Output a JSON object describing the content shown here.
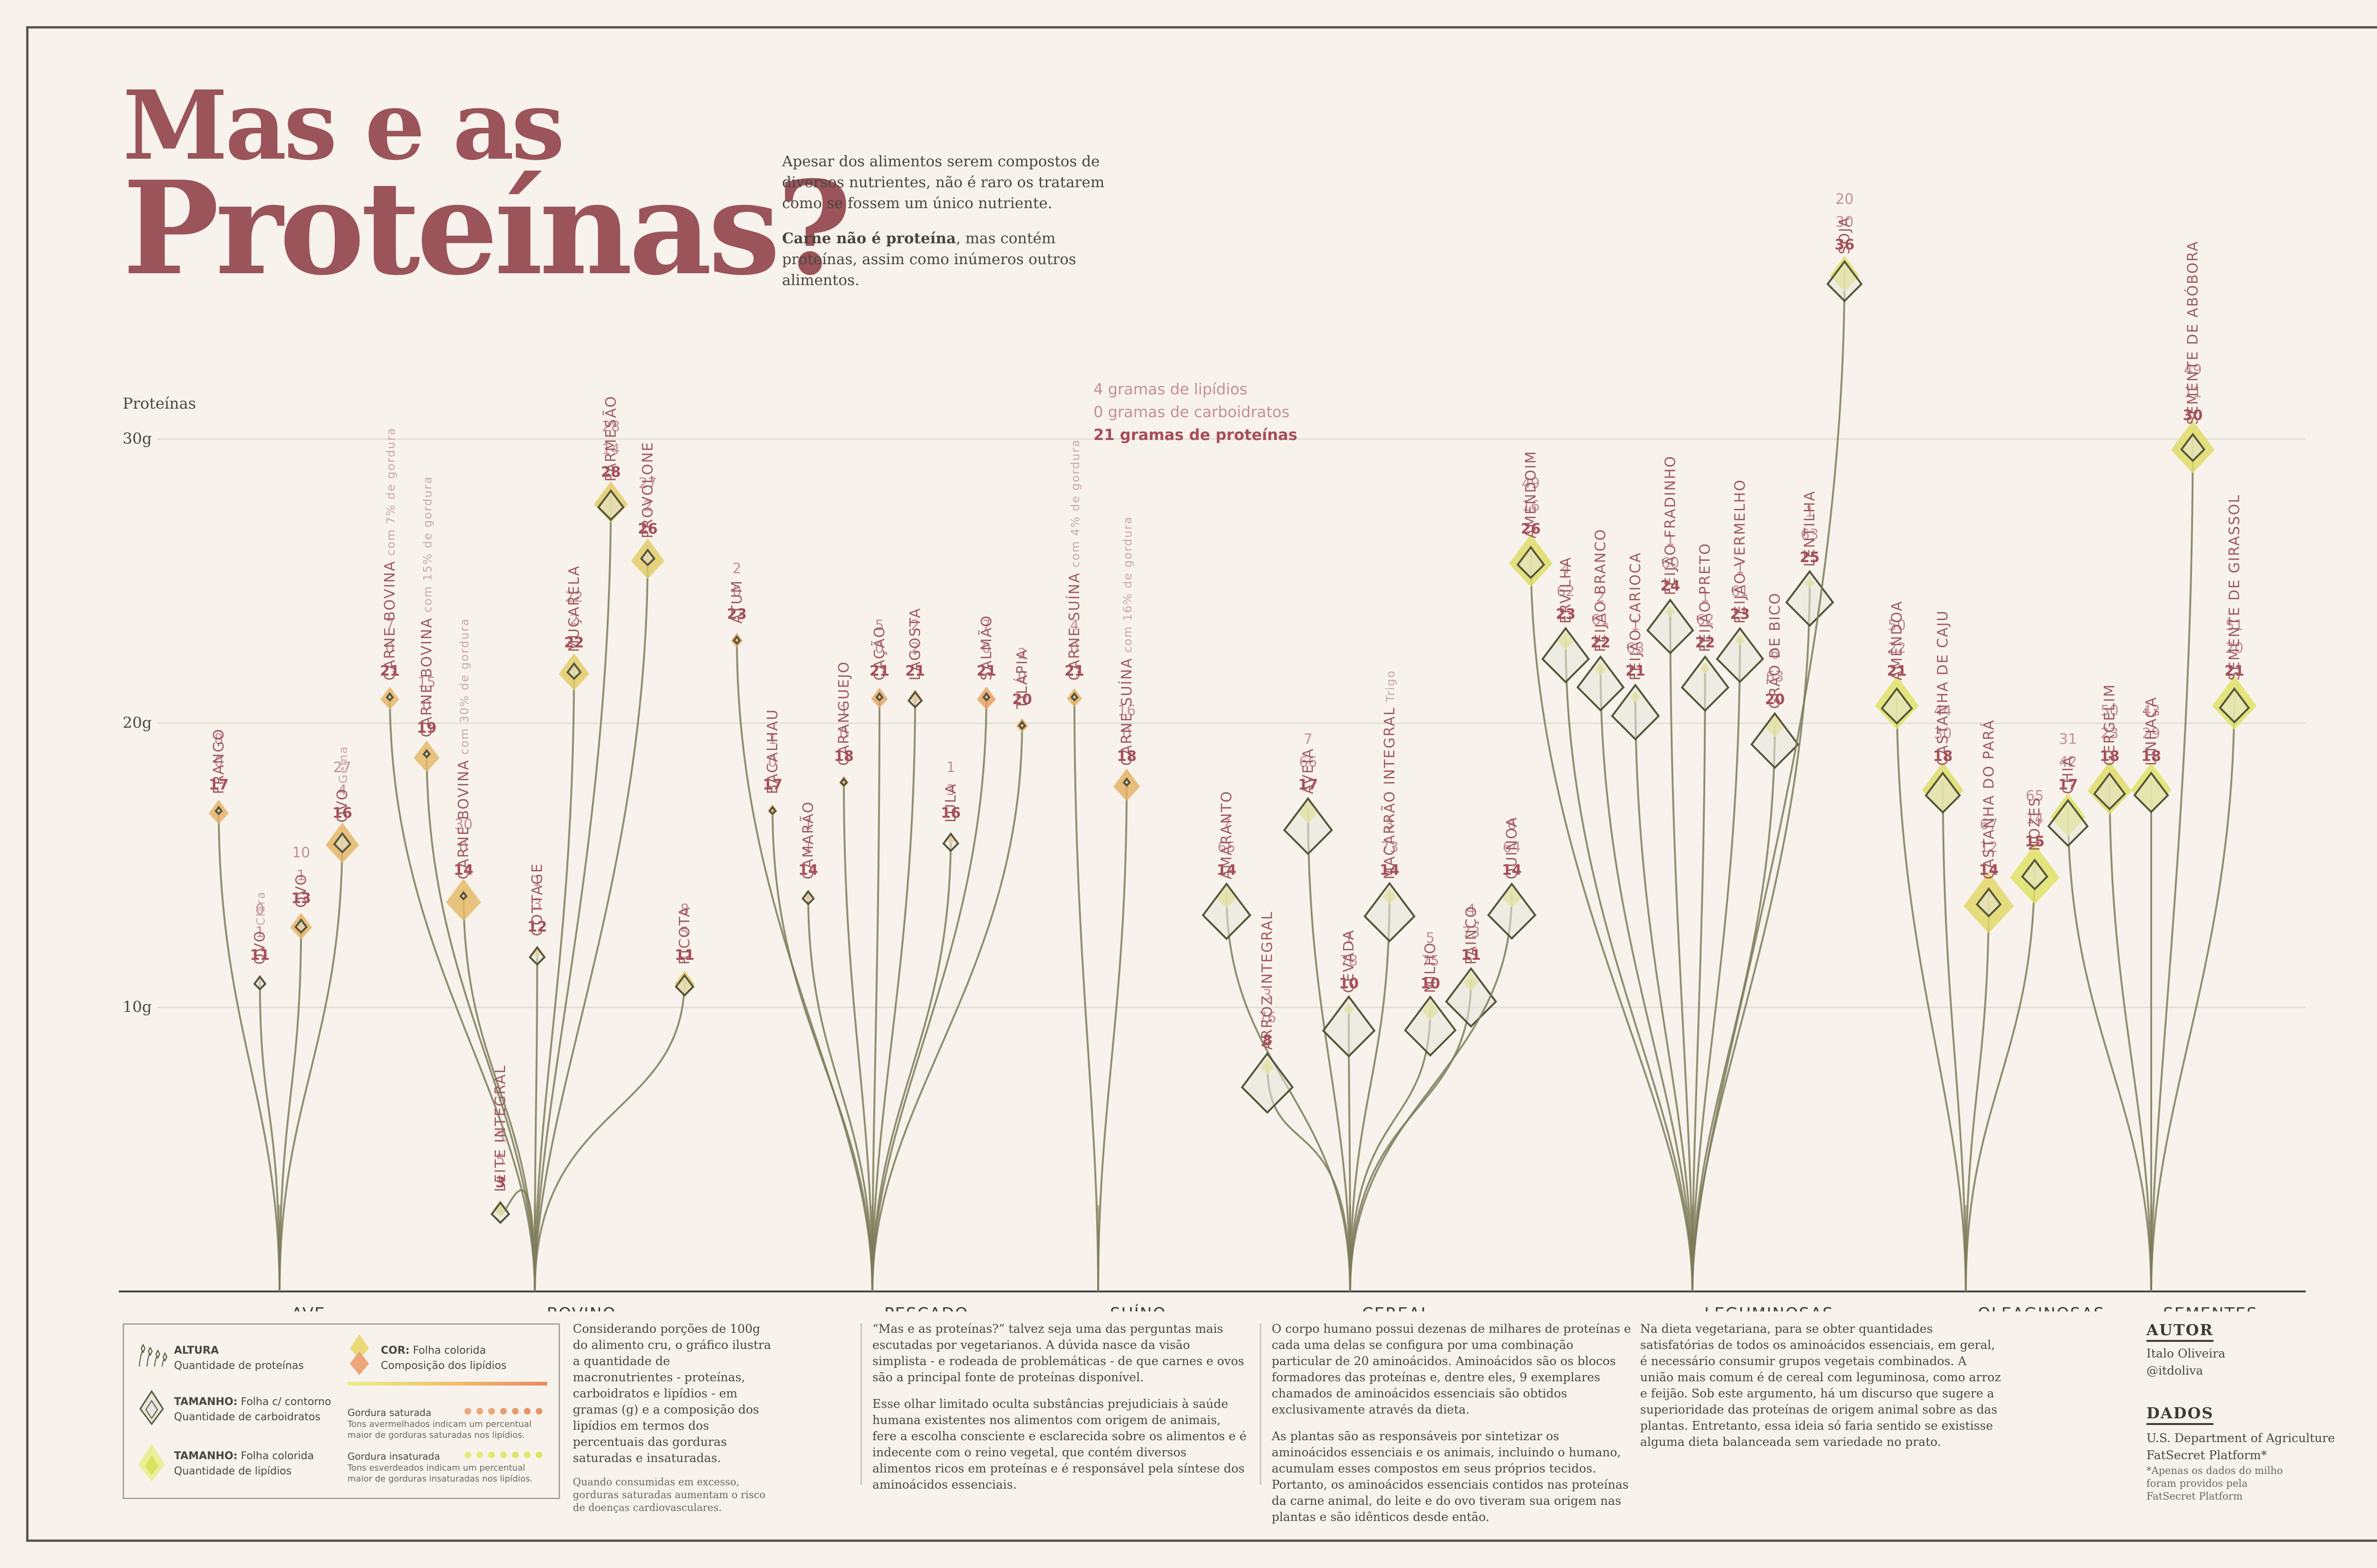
{
  "title": {
    "line1": "Mas e as",
    "line2": "Proteínas?"
  },
  "intro": {
    "p1": "Apesar dos alimentos serem compostos de diversos nutrientes, não é raro os tratarem como se fossem um único nutriente.",
    "p2_bold": "Carne não é proteína",
    "p2_rest": ", mas contém proteínas, assim como inúmeros outros alimentos."
  },
  "colors": {
    "title": "#9b545a",
    "stem": "#7d7d5c",
    "protein": "#a84d5a",
    "fat": "#c58e98",
    "carb": "#c58e98",
    "saturated": "#e8946a",
    "unsaturated": "#e0e86a",
    "leaf_outline": "#55553a",
    "leaf_fill": "#e6e6da"
  },
  "chart_data": {
    "type": "scatter",
    "ylabel": "Proteínas",
    "ylim": [
      0,
      30
    ],
    "yticks": [
      "10g",
      "20g",
      "30g"
    ],
    "key_example": {
      "fat": "4 gramas de lipídios",
      "carb": "0 gramas de carboidratos",
      "protein": "21 gramas de proteínas"
    },
    "categories": [
      "AVE",
      "BOVINO",
      "PESCADO",
      "SUÍNO",
      "CEREAL",
      "LEGUMINOSAS",
      "OLEAGINOSAS",
      "SEMENTES"
    ],
    "foods": [
      {
        "name": "FRANGO",
        "group": "AVE",
        "protein": 17,
        "carb": 0,
        "fat": 8,
        "sat": 0.35
      },
      {
        "name": "OVO",
        "note": "Clara",
        "group": "AVE",
        "protein": 11,
        "carb": 1,
        "fat": 0,
        "sat": 0.5
      },
      {
        "name": "OVO",
        "group": "AVE",
        "protein": 13,
        "carb": 1,
        "fat": 10,
        "sat": 0.35
      },
      {
        "name": "OVO",
        "note": "Gema",
        "group": "AVE",
        "protein": 16,
        "carb": 4,
        "fat": 27,
        "sat": 0.4
      },
      {
        "name": "CARNE BOVINA",
        "note": "com 7% de gordura",
        "group": "BOVINO",
        "protein": 21,
        "carb": 0,
        "fat": 7,
        "sat": 0.4
      },
      {
        "name": "CARNE BOVINA",
        "note": "com 15% de gordura",
        "group": "BOVINO",
        "protein": 19,
        "carb": 0,
        "fat": 15,
        "sat": 0.45
      },
      {
        "name": "CARNE BOVINA",
        "note": "com 30% de gordura",
        "group": "BOVINO",
        "protein": 14,
        "carb": 0,
        "fat": 30,
        "sat": 0.45
      },
      {
        "name": "LEITE INTEGRAL",
        "group": "BOVINO",
        "protein": 3,
        "carb": 5,
        "fat": 3,
        "sat": 0.65
      },
      {
        "name": "COTTAGE",
        "group": "BOVINO",
        "protein": 12,
        "carb": 3,
        "fat": 1,
        "sat": 0.6
      },
      {
        "name": "MUÇARELA",
        "group": "BOVINO",
        "protein": 22,
        "carb": 2,
        "fat": 22,
        "sat": 0.65
      },
      {
        "name": "PARMESÃO",
        "group": "BOVINO",
        "protein": 28,
        "carb": 14,
        "fat": 28,
        "sat": 0.65
      },
      {
        "name": "PROVOLONE",
        "group": "BOVINO",
        "protein": 26,
        "carb": 2,
        "fat": 27,
        "sat": 0.65
      },
      {
        "name": "RICOTA",
        "group": "BOVINO",
        "protein": 11,
        "carb": 5,
        "fat": 8,
        "sat": 0.65
      },
      {
        "name": "ATUM",
        "group": "PESCADO",
        "protein": 23,
        "carb": 0,
        "fat": 2,
        "sat": 0.2
      },
      {
        "name": "BACALHAU",
        "group": "PESCADO",
        "protein": 17,
        "carb": 0,
        "fat": 1,
        "sat": 0.2
      },
      {
        "name": "CAMARÃO",
        "group": "PESCADO",
        "protein": 14,
        "carb": 1,
        "fat": 1,
        "sat": 0.3
      },
      {
        "name": "CARANGUEJO",
        "group": "PESCADO",
        "protein": 18,
        "carb": 0,
        "fat": 1,
        "sat": 0.1
      },
      {
        "name": "CAÇÃO",
        "group": "PESCADO",
        "protein": 21,
        "carb": 0,
        "fat": 5,
        "sat": 0.2
      },
      {
        "name": "LAGOSTA",
        "group": "PESCADO",
        "protein": 21,
        "carb": 2,
        "fat": 2,
        "sat": 0.2
      },
      {
        "name": "LULA",
        "group": "PESCADO",
        "protein": 16,
        "carb": 3,
        "fat": 1,
        "sat": 0.3
      },
      {
        "name": "SALMÃO",
        "group": "PESCADO",
        "protein": 21,
        "carb": 0,
        "fat": 7,
        "sat": 0.15
      },
      {
        "name": "TILÁPIA",
        "group": "PESCADO",
        "protein": 20,
        "carb": 0,
        "fat": 2,
        "sat": 0.3
      },
      {
        "name": "CARNE SUÍNA",
        "note": "com 4% de gordura",
        "group": "SUÍNO",
        "protein": 21,
        "carb": 0,
        "fat": 4,
        "sat": 0.35
      },
      {
        "name": "CARNE SUÍNA",
        "note": "com 16% de gordura",
        "group": "SUÍNO",
        "protein": 18,
        "carb": 0,
        "fat": 16,
        "sat": 0.35
      },
      {
        "name": "AMARANTO",
        "group": "CEREAL",
        "protein": 14,
        "carb": 65,
        "fat": 7,
        "sat": 0.85
      },
      {
        "name": "ARROZ INTEGRAL",
        "group": "CEREAL",
        "protein": 8,
        "carb": 76,
        "fat": 3,
        "sat": 0.85
      },
      {
        "name": "AVEIA",
        "group": "CEREAL",
        "protein": 17,
        "carb": 66,
        "fat": 7,
        "sat": 0.85
      },
      {
        "name": "CEVADA",
        "group": "CEREAL",
        "protein": 10,
        "carb": 78,
        "fat": 1,
        "sat": 0.85
      },
      {
        "name": "MACARRÃO INTEGRAL",
        "note": "Trigo",
        "group": "CEREAL",
        "protein": 14,
        "carb": 73,
        "fat": 3,
        "sat": 0.85
      },
      {
        "name": "MILHO",
        "group": "CEREAL",
        "protein": 10,
        "carb": 75,
        "fat": 5,
        "sat": 0.85
      },
      {
        "name": "PAINÇO",
        "group": "CEREAL",
        "protein": 11,
        "carb": 73,
        "fat": 4,
        "sat": 0.85
      },
      {
        "name": "QUINOA",
        "group": "CEREAL",
        "protein": 14,
        "carb": 64,
        "fat": 6,
        "sat": 0.85
      },
      {
        "name": "AMENDOIM",
        "group": "LEGUMINOSAS",
        "protein": 26,
        "carb": 16,
        "fat": 49,
        "sat": 0.85
      },
      {
        "name": "ERVILHA",
        "group": "LEGUMINOSAS",
        "protein": 23,
        "carb": 62,
        "fat": 4,
        "sat": 0.85
      },
      {
        "name": "FEIJÃO BRANCO",
        "group": "LEGUMINOSAS",
        "protein": 22,
        "carb": 61,
        "fat": 2,
        "sat": 0.85
      },
      {
        "name": "FEIJÃO CARIOCA",
        "group": "LEGUMINOSAS",
        "protein": 21,
        "carb": 63,
        "fat": 1,
        "sat": 0.85
      },
      {
        "name": "FEIJÃO FRADINHO",
        "group": "LEGUMINOSAS",
        "protein": 24,
        "carb": 60,
        "fat": 1,
        "sat": 0.85
      },
      {
        "name": "FEIJÃO PRETO",
        "group": "LEGUMINOSAS",
        "protein": 22,
        "carb": 62,
        "fat": 1,
        "sat": 0.85
      },
      {
        "name": "FEIJÃO VERMELHO",
        "group": "LEGUMINOSAS",
        "protein": 23,
        "carb": 61,
        "fat": 1,
        "sat": 0.85
      },
      {
        "name": "GRÃO DE BICO",
        "group": "LEGUMINOSAS",
        "protein": 20,
        "carb": 63,
        "fat": 6,
        "sat": 0.85
      },
      {
        "name": "LENTILHA",
        "group": "LEGUMINOSAS",
        "protein": 25,
        "carb": 63,
        "fat": 1,
        "sat": 0.85
      },
      {
        "name": "SOJA",
        "group": "LEGUMINOSAS",
        "protein": 36,
        "carb": 30,
        "fat": 20,
        "sat": 0.85
      },
      {
        "name": "AMÊNDOA",
        "group": "OLEAGINOSAS",
        "protein": 21,
        "carb": 22,
        "fat": 50,
        "sat": 0.9
      },
      {
        "name": "CASTANHA DE CAJU",
        "group": "OLEAGINOSAS",
        "protein": 18,
        "carb": 30,
        "fat": 44,
        "sat": 0.85
      },
      {
        "name": "CASTANHA DO PARÁ",
        "group": "OLEAGINOSAS",
        "protein": 14,
        "carb": 12,
        "fat": 67,
        "sat": 0.8
      },
      {
        "name": "NOZES",
        "group": "OLEAGINOSAS",
        "protein": 15,
        "carb": 14,
        "fat": 65,
        "sat": 0.9
      },
      {
        "name": "CHIA",
        "group": "SEMENTES",
        "protein": 17,
        "carb": 42,
        "fat": 31,
        "sat": 0.9
      },
      {
        "name": "GERGELIM",
        "group": "SEMENTES",
        "protein": 18,
        "carb": 23,
        "fat": 50,
        "sat": 0.85
      },
      {
        "name": "LINHAÇA",
        "group": "SEMENTES",
        "protein": 18,
        "carb": 29,
        "fat": 42,
        "sat": 0.9
      },
      {
        "name": "SEMENTE DE ABÓBORA",
        "group": "SEMENTES",
        "protein": 30,
        "carb": 11,
        "fat": 49,
        "sat": 0.85
      },
      {
        "name": "SEMENTE DE GIRASSOL",
        "group": "SEMENTES",
        "protein": 21,
        "carb": 20,
        "fat": 51,
        "sat": 0.9
      }
    ]
  },
  "legend": {
    "height_title": "ALTURA",
    "height_desc": "Quantidade de proteínas",
    "size_outline_title": "TAMANHO:",
    "size_outline_rest": "Folha c/ contorno",
    "size_outline_desc": "Quantidade de carboidratos",
    "size_filled_title": "TAMANHO:",
    "size_filled_rest": "Folha colorida",
    "size_filled_desc": "Quantidade de lipídios",
    "color_title": "COR:",
    "color_rest": "Folha colorida",
    "color_desc": "Composição dos lipídios",
    "sat_title": "Gordura saturada",
    "sat_desc": "Tons avermelhados indicam um percentual maior de gorduras saturadas nos lipídios.",
    "unsat_title": "Gordura insaturada",
    "unsat_desc": "Tons esverdeados indicam um percentual maior de gorduras insaturadas nos lipídios."
  },
  "text_col1": {
    "body": "Considerando porções de 100g do alimento cru, o gráfico ilustra a quantidade de macronutrientes - proteínas, carboidratos e lipídios - em gramas (g) e a composição dos lipídios em termos dos percentuais das gorduras saturadas e insaturadas.",
    "note": "Quando consumidas em excesso, gorduras saturadas aumentam o risco de doenças cardiovasculares."
  },
  "text_col2": {
    "p1": "“Mas e as proteínas?” talvez seja uma das perguntas mais escutadas por vegetarianos. A dúvida nasce da visão simplista - e rodeada de problemáticas - de que carnes e ovos são a principal fonte de proteínas disponível.",
    "p2": "Esse olhar limitado oculta substâncias prejudiciais à saúde humana existentes nos alimentos com origem de animais, fere a escolha consciente e esclarecida sobre os alimentos e é indecente com o reino vegetal, que contém diversos alimentos ricos em proteínas e é responsável pela síntese dos aminoácidos essenciais."
  },
  "text_col3": {
    "p1": "O corpo humano possui dezenas de milhares de proteínas e cada uma delas se configura por uma combinação particular de 20 aminoácidos. Aminoácidos são os blocos formadores das proteínas e, dentre eles, 9 exemplares chamados de aminoácidos essenciais são obtidos exclusivamente através da dieta.",
    "p2": "As plantas são as responsáveis por sintetizar os aminoácidos essenciais e os animais, incluindo o humano, acumulam esses compostos em seus próprios tecidos. Portanto, os aminoácidos essenciais contidos nas proteínas da carne animal, do leite e do ovo tiveram sua origem nas plantas e são idênticos desde então."
  },
  "text_col4": {
    "p1": "Na dieta vegetariana, para se obter quantidades satisfatórias de todos os aminoácidos essenciais, em geral, é necessário consumir grupos vegetais combinados. A união mais comum é de cereal com leguminosa, como arroz e feijão. Sob este argumento, há um discurso que sugere a superioridade das proteínas de origem animal sobre as das plantas. Entretanto, essa ideia só faria sentido se existisse alguma dieta balanceada sem variedade no prato."
  },
  "credits": {
    "author_header": "AUTOR",
    "author_name": "Italo Oliveira",
    "author_handle": "@itdoliva",
    "data_header": "DADOS",
    "data_src1": "U.S. Department of Agriculture",
    "data_src2": "FatSecret Platform*",
    "data_note": "*Apenas os dados do milho foram providos pela FatSecret Platform"
  }
}
